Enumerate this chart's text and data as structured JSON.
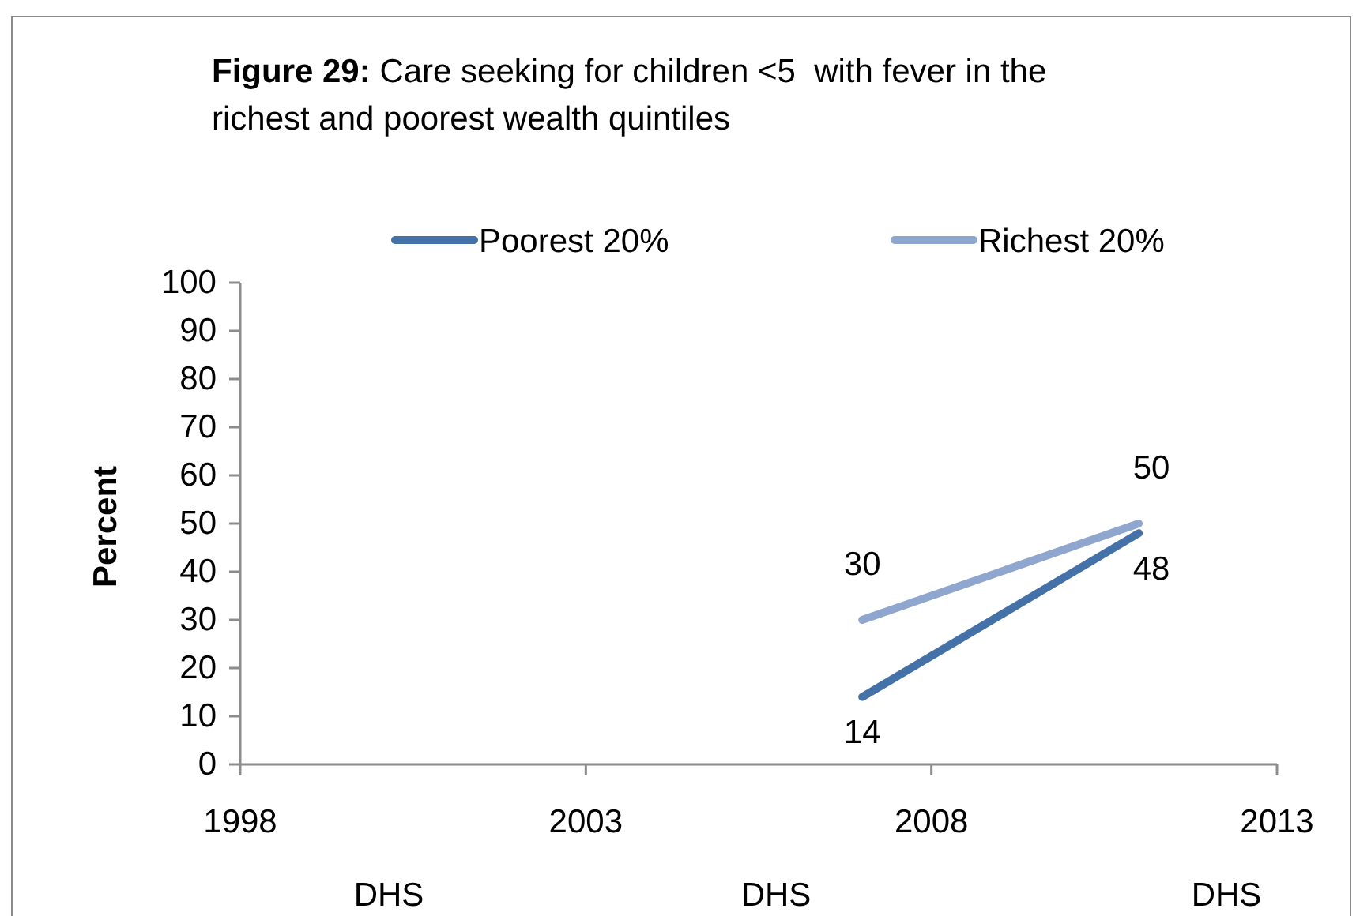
{
  "chart_data": {
    "type": "line",
    "title": "Figure 29: Care seeking for children <5  with fever in the richest and poorest wealth quintiles",
    "ylabel": "Percent",
    "x": [
      2007,
      2011
    ],
    "series": [
      {
        "name": "Poorest 20%",
        "color": "#4472a8",
        "values": [
          14,
          48
        ]
      },
      {
        "name": "Richest 20%",
        "color": "#8fa7cf",
        "values": [
          30,
          50
        ]
      }
    ],
    "xlim": [
      1998,
      2013
    ],
    "xticks": [
      1998,
      2003,
      2008,
      2013
    ],
    "ylim": [
      0,
      100
    ],
    "yticks": [
      0,
      10,
      20,
      30,
      40,
      50,
      60,
      70,
      80,
      90,
      100
    ],
    "data_labels": true,
    "legend": "top",
    "annotations": [
      "DHS",
      "DHS",
      "DHS"
    ]
  }
}
